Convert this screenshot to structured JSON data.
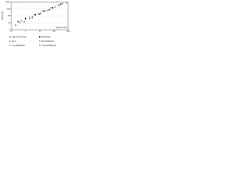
{
  "chart_data": {
    "type": "scatter",
    "xlabel": "Torque (Nm)",
    "ylabel": "Mass (g)",
    "xscale": "log",
    "yscale": "log",
    "xlim": [
      0.1,
      1000
    ],
    "xticks": [
      0.1,
      1,
      10,
      100,
      1000
    ],
    "ylim": [
      1,
      10000
    ],
    "yticks": [
      1,
      10,
      100,
      1000,
      10000
    ],
    "grid": true,
    "series": [
      {
        "name": "Harmonic Drive",
        "color": "#111111",
        "marker": "circle",
        "x": [
          0.5,
          2,
          8,
          30,
          120,
          400
        ],
        "y": [
          20,
          60,
          200,
          600,
          2000,
          6000
        ]
      },
      {
        "name": "Planetary",
        "color": "#111111",
        "marker": "square",
        "x": [
          0.3,
          1,
          5,
          20,
          80,
          300
        ],
        "y": [
          15,
          40,
          150,
          500,
          1500,
          5000
        ]
      },
      {
        "name": "Spur",
        "color": "#111111",
        "marker": "triangle",
        "x": [
          0.2,
          0.8,
          3,
          10,
          40
        ],
        "y": [
          5,
          15,
          60,
          200,
          700
        ]
      },
      {
        "name": "Bevel/Helical",
        "color": "#111111",
        "marker": "cross",
        "x": [
          1,
          4,
          15,
          60,
          200
        ],
        "y": [
          50,
          150,
          500,
          1500,
          4000
        ]
      },
      {
        "name": "Low Backlash",
        "color": "#111111",
        "marker": "diamond",
        "x": [
          0.4,
          2,
          10,
          50
        ],
        "y": [
          10,
          40,
          180,
          800
        ]
      },
      {
        "name": "Cycloidal/Strain",
        "color": "#111111",
        "marker": "plus",
        "x": [
          3,
          12,
          50,
          250,
          800
        ],
        "y": [
          80,
          250,
          900,
          3000,
          8000
        ]
      }
    ]
  }
}
